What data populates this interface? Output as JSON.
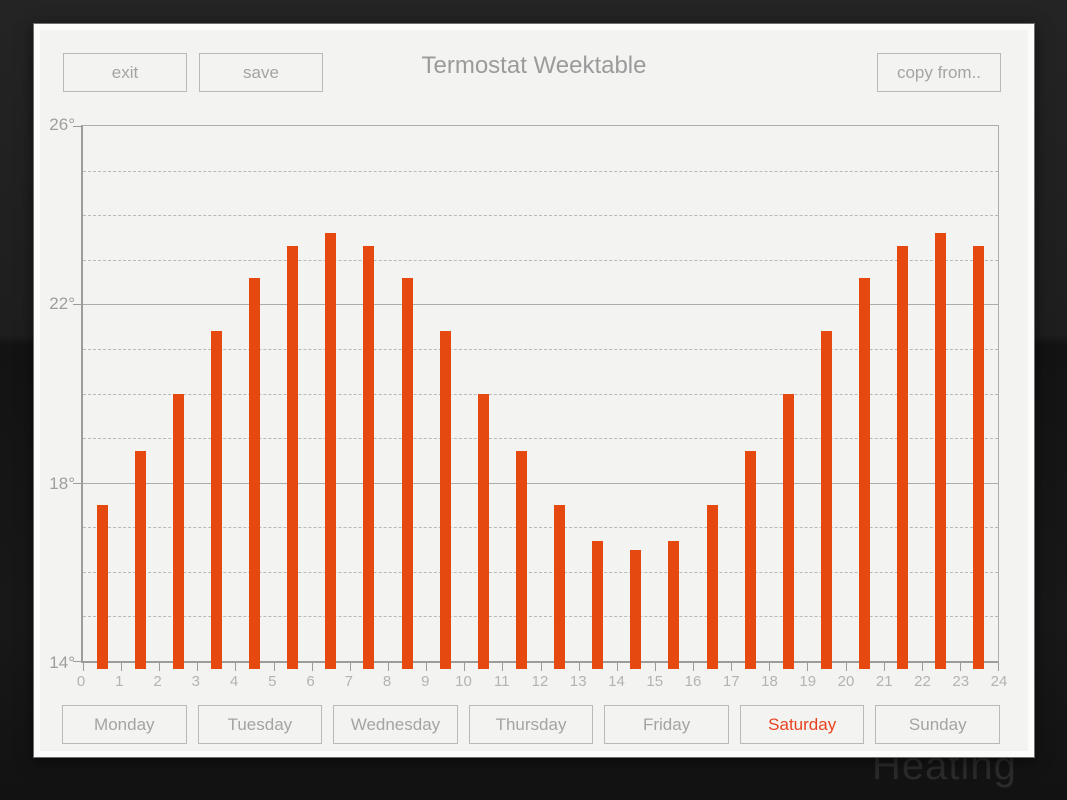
{
  "background": {
    "watermark": "Heating"
  },
  "header": {
    "exit_label": "exit",
    "save_label": "save",
    "title": "Termostat Weektable",
    "copy_from_label": "copy from.."
  },
  "chart_data": {
    "type": "bar",
    "title": "Termostat Weektable",
    "x": [
      0.5,
      1.5,
      2.5,
      3.5,
      4.5,
      5.5,
      6.5,
      7.5,
      8.5,
      9.5,
      10.5,
      11.5,
      12.5,
      13.5,
      14.5,
      15.5,
      16.5,
      17.5,
      18.5,
      19.5,
      20.5,
      21.5,
      22.5,
      23.5
    ],
    "values": [
      17.5,
      18.7,
      20.0,
      21.4,
      22.6,
      23.3,
      23.6,
      23.3,
      22.6,
      21.4,
      20.0,
      18.7,
      17.5,
      16.7,
      16.5,
      16.7,
      17.5,
      18.7,
      20.0,
      21.4,
      22.6,
      23.3,
      23.6,
      23.3
    ],
    "xlim": [
      0,
      24
    ],
    "ylim": [
      14,
      26
    ],
    "x_tick_labels": [
      "0",
      "1",
      "2",
      "3",
      "4",
      "5",
      "6",
      "7",
      "8",
      "9",
      "10",
      "11",
      "12",
      "13",
      "14",
      "15",
      "16",
      "17",
      "18",
      "19",
      "20",
      "21",
      "22",
      "23",
      "24"
    ],
    "y_tick_labels": [
      {
        "value": 26,
        "label": "26°"
      },
      {
        "value": 22,
        "label": "22°"
      },
      {
        "value": 18,
        "label": "18°"
      },
      {
        "value": 14,
        "label": "14°"
      }
    ],
    "grid": {
      "solid_degrees": [
        26,
        22,
        18,
        14
      ],
      "dashed_degrees": [
        15,
        16,
        17,
        19,
        20,
        21,
        23,
        24,
        25
      ]
    },
    "bar_color": "#e5490f",
    "legend": "none"
  },
  "days": {
    "selected": "Saturday",
    "items": [
      {
        "label": "Monday"
      },
      {
        "label": "Tuesday"
      },
      {
        "label": "Wednesday"
      },
      {
        "label": "Thursday"
      },
      {
        "label": "Friday"
      },
      {
        "label": "Saturday"
      },
      {
        "label": "Sunday"
      }
    ]
  },
  "colors": {
    "accent": "#e5490f",
    "selected_day_text": "#e8431e",
    "window_bg": "#f3f3f1",
    "muted_text": "#a4a4a4"
  }
}
